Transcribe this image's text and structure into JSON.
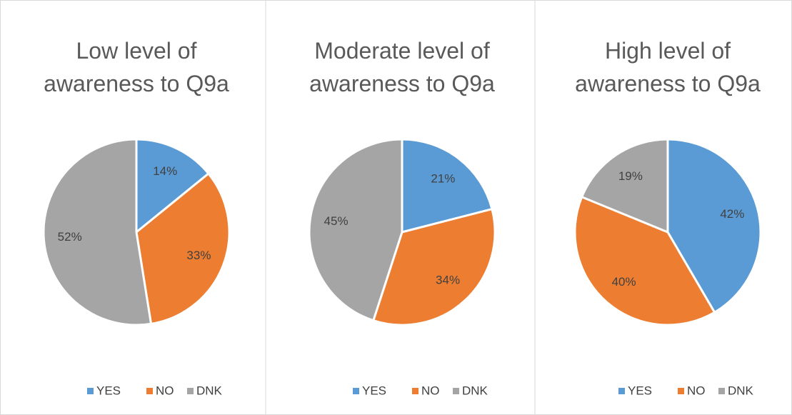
{
  "chart_data": [
    {
      "type": "pie",
      "title": "Low level of awareness to Q9a",
      "categories": [
        "YES",
        "NO",
        "DNK"
      ],
      "values": [
        14,
        33,
        52
      ],
      "value_labels": [
        "14%",
        "33%",
        "52%"
      ],
      "colors": [
        "#5b9bd5",
        "#ed7d31",
        "#a5a5a5"
      ],
      "legend": "bottom"
    },
    {
      "type": "pie",
      "title": "Moderate level of awareness to Q9a",
      "categories": [
        "YES",
        "NO",
        "DNK"
      ],
      "values": [
        21,
        34,
        45
      ],
      "value_labels": [
        "21%",
        "34%",
        "45%"
      ],
      "colors": [
        "#5b9bd5",
        "#ed7d31",
        "#a5a5a5"
      ],
      "legend": "bottom"
    },
    {
      "type": "pie",
      "title": "High level of awareness to Q9a",
      "categories": [
        "YES",
        "NO",
        "DNK"
      ],
      "values": [
        42,
        40,
        19
      ],
      "value_labels": [
        "42%",
        "40%",
        "19%"
      ],
      "colors": [
        "#5b9bd5",
        "#ed7d31",
        "#a5a5a5"
      ],
      "legend": "bottom"
    }
  ]
}
